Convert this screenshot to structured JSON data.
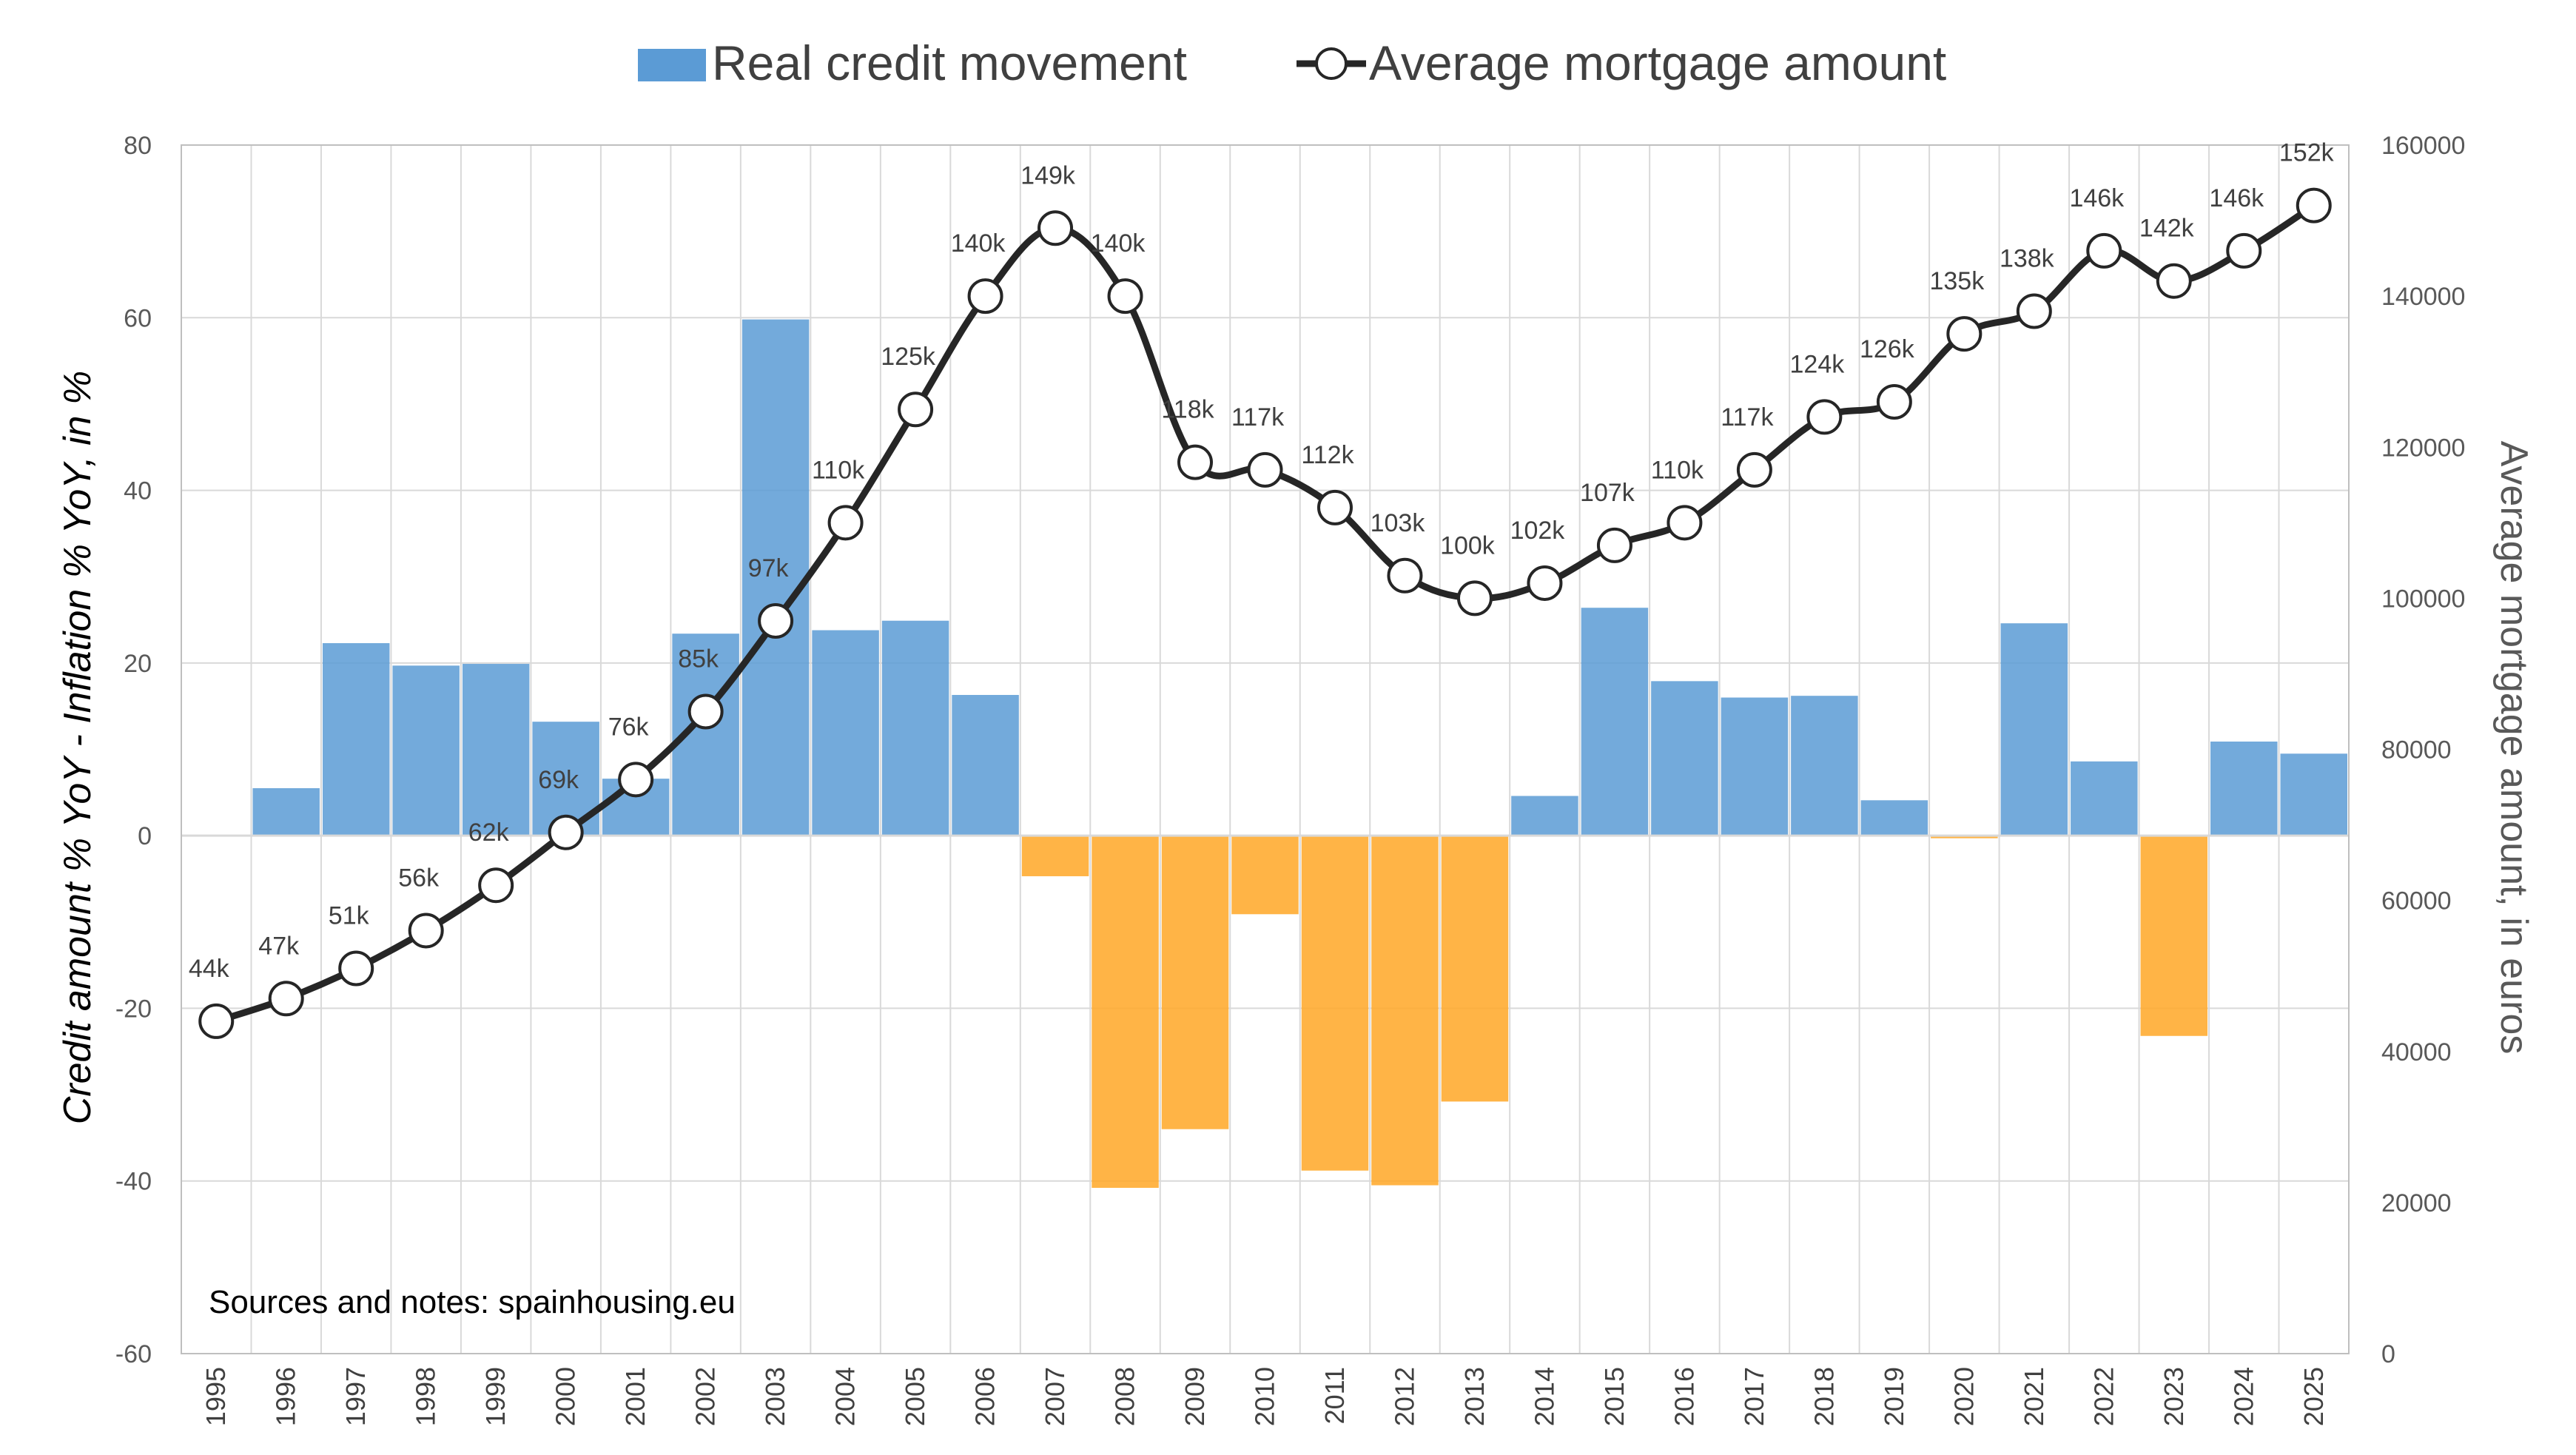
{
  "chart_data": {
    "type": "bar",
    "categories": [
      "1995",
      "1996",
      "1997",
      "1998",
      "1999",
      "2000",
      "2001",
      "2002",
      "2003",
      "2004",
      "2005",
      "2006",
      "2007",
      "2008",
      "2009",
      "2010",
      "2011",
      "2012",
      "2013",
      "2014",
      "2015",
      "2016",
      "2017",
      "2018",
      "2019",
      "2020",
      "2021",
      "2022",
      "2023",
      "2024",
      "2025"
    ],
    "series": [
      {
        "name": "Real credit movement",
        "type": "bar",
        "axis": "left",
        "values": [
          0,
          5.5,
          22.3,
          19.7,
          19.9,
          13.2,
          6.6,
          23.4,
          59.8,
          23.8,
          24.9,
          16.3,
          -4.7,
          -40.8,
          -34.0,
          -9.1,
          -38.8,
          -40.5,
          -30.8,
          4.6,
          26.4,
          17.9,
          16.0,
          16.2,
          4.1,
          -0.3,
          24.6,
          8.6,
          -23.2,
          10.9,
          9.5
        ],
        "positive_color": "#5B9BD5",
        "negative_color": "#FFA726"
      },
      {
        "name": "Average mortgage amount",
        "type": "line",
        "axis": "right",
        "values": [
          44000,
          47000,
          51000,
          56000,
          62000,
          69000,
          76000,
          85000,
          97000,
          110000,
          125000,
          140000,
          149000,
          140000,
          118000,
          117000,
          112000,
          103000,
          100000,
          102000,
          107000,
          110000,
          117000,
          124000,
          126000,
          135000,
          138000,
          146000,
          142000,
          146000,
          152000
        ],
        "labels": [
          "44k",
          "47k",
          "51k",
          "56k",
          "62k",
          "69k",
          "76k",
          "85k",
          "97k",
          "110k",
          "125k",
          "140k",
          "149k",
          "140k",
          "118k",
          "117k",
          "112k",
          "103k",
          "100k",
          "102k",
          "107k",
          "110k",
          "117k",
          "124k",
          "126k",
          "135k",
          "138k",
          "146k",
          "142k",
          "146k",
          "152k"
        ],
        "color": "#262626"
      }
    ],
    "ylabel": "Credit amount % YoY - Inflation % YoY, in %",
    "ylabel_right": "Average mortgage amount, in euros",
    "ylim": [
      -60,
      80
    ],
    "ylim_right": [
      0,
      160000
    ],
    "yticks": [
      "80",
      "60",
      "40",
      "20",
      "0",
      "-20",
      "-40",
      "-60"
    ],
    "yticks_right": [
      "160000",
      "140000",
      "120000",
      "100000",
      "80000",
      "60000",
      "40000",
      "20000",
      "0"
    ],
    "grid": true,
    "legend_position": "top-center",
    "annotation": "Sources and notes: spainhousing.eu"
  }
}
